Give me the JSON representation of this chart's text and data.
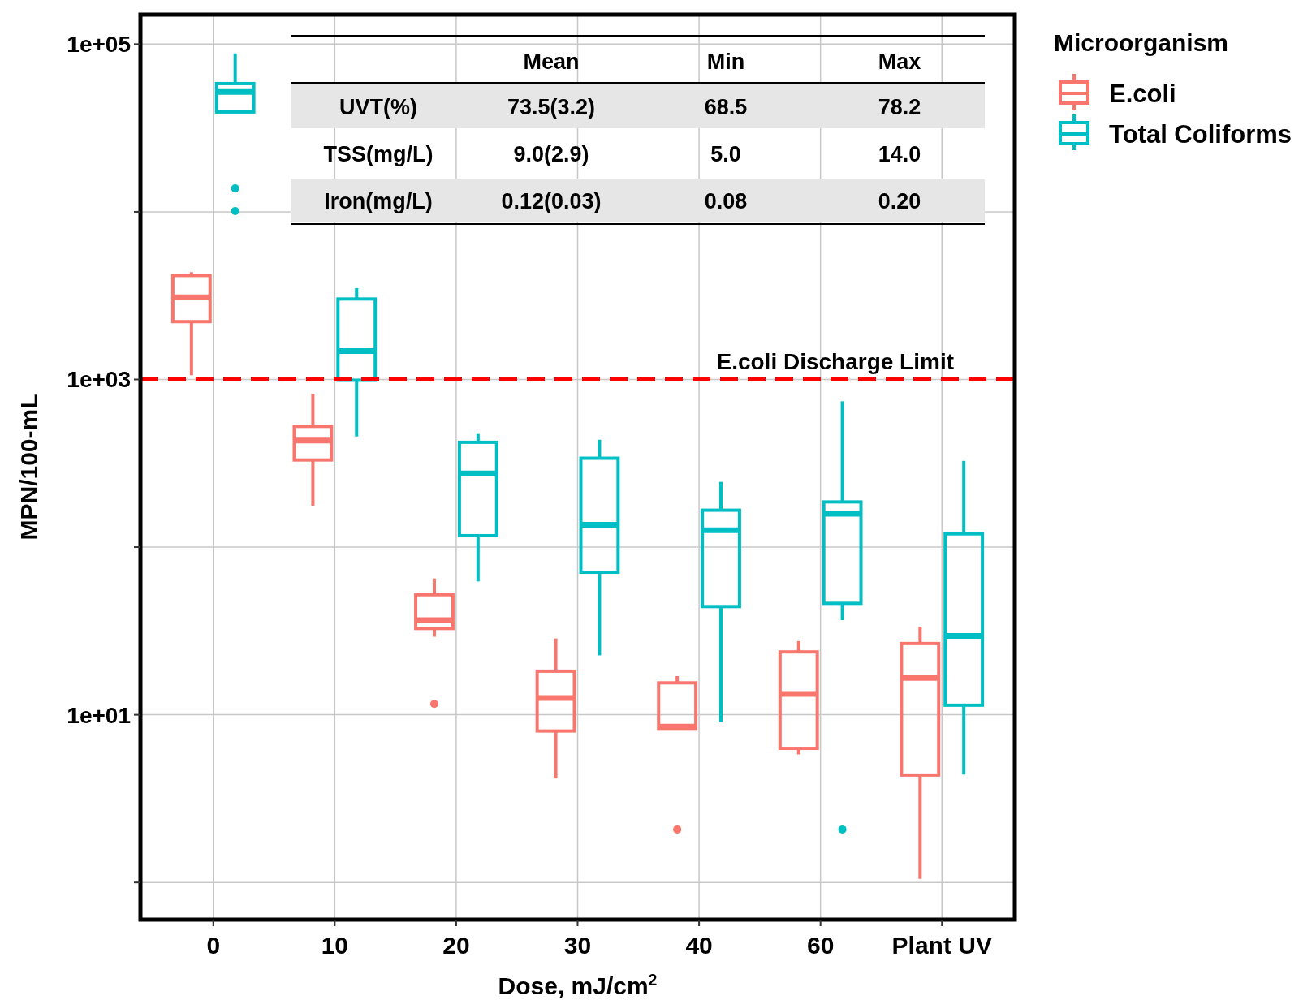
{
  "chart_data": {
    "type": "box",
    "xlabel": "Dose, mJ/cm$^{2}$",
    "ylabel": "MPN/100-mL",
    "legend_title": "Microorganism",
    "legend": "top right",
    "grid": true,
    "log": "y",
    "categories": [
      "0",
      "10",
      "20",
      "30",
      "40",
      "60",
      "Plant UV"
    ],
    "ylim": [
      0.6,
      150000
    ],
    "yticks": [
      {
        "value": 100000,
        "label": "1e+05"
      },
      {
        "value": 10000,
        "label": null
      },
      {
        "value": 1000,
        "label": "1e+03"
      },
      {
        "value": 100,
        "label": null
      },
      {
        "value": 10,
        "label": "1e+01"
      },
      {
        "value": 1,
        "label": null
      }
    ],
    "series": [
      {
        "name": "E.coli",
        "color": "#f8766d",
        "boxes": [
          {
            "low": 1059,
            "q1": 2213,
            "median": 3090,
            "q3": 4170,
            "high": 4365
          },
          {
            "low": 176,
            "q1": 331,
            "median": 432,
            "q3": 525,
            "high": 822
          },
          {
            "low": 29.2,
            "q1": 32.7,
            "median": 36.7,
            "q3": 52,
            "high": 65,
            "outliers": [
              11.6
            ]
          },
          {
            "low": 4.17,
            "q1": 8.0,
            "median": 12.6,
            "q3": 18.2,
            "high": 28.5
          },
          {
            "low": 8.3,
            "q1": 8.3,
            "median": 8.5,
            "q3": 15.5,
            "high": 17,
            "outliers": [
              2.07
            ]
          },
          {
            "low": 5.8,
            "q1": 6.3,
            "median": 13.3,
            "q3": 23.7,
            "high": 27.5
          },
          {
            "low": 1.05,
            "q1": 4.37,
            "median": 16.6,
            "q3": 26.6,
            "high": 33.5
          }
        ]
      },
      {
        "name": "Total Coliforms",
        "color": "#00bfc4",
        "boxes": [
          {
            "low": 39400,
            "q1": 39400,
            "median": 51900,
            "q3": 58200,
            "high": 88100,
            "outliers": [
              13800,
              10100
            ]
          },
          {
            "low": 457,
            "q1": 989,
            "median": 1479,
            "q3": 3020,
            "high": 3508
          },
          {
            "low": 62.4,
            "q1": 117,
            "median": 275,
            "q3": 422,
            "high": 473
          },
          {
            "low": 22.6,
            "q1": 70.8,
            "median": 136,
            "q3": 339,
            "high": 437
          },
          {
            "low": 9.0,
            "q1": 44.2,
            "median": 126,
            "q3": 166,
            "high": 245
          },
          {
            "low": 36.7,
            "q1": 46.2,
            "median": 158,
            "q3": 186,
            "high": 741,
            "outliers": [
              2.07
            ]
          },
          {
            "low": 4.4,
            "q1": 11.4,
            "median": 29.5,
            "q3": 120,
            "high": 327
          }
        ]
      }
    ],
    "ref_lines": [
      {
        "axis": "y",
        "value": 1000,
        "label": "E.coli Discharge Limit",
        "color": "#ff0000",
        "line_style": "dashed"
      }
    ],
    "annotations": [
      "Mean",
      "Min",
      "Max",
      "UVT(%)",
      "73.5(3.2)",
      "68.5",
      "78.2",
      "TSS(mg/L)",
      "9.0(2.9)",
      "5.0",
      "14.0",
      "Iron(mg/L)",
      "0.12(0.03)",
      "0.08",
      "0.20"
    ]
  }
}
